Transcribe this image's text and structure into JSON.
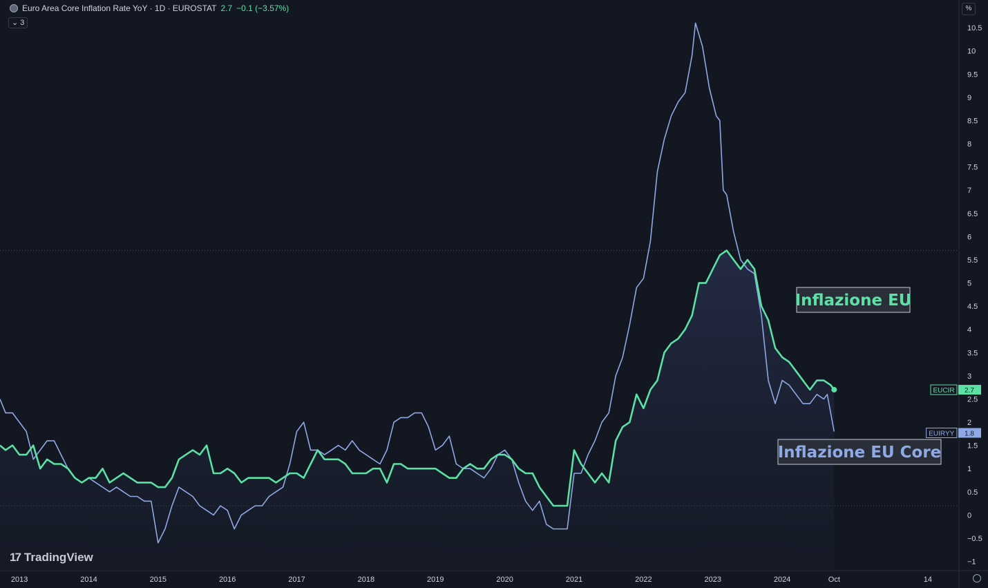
{
  "header": {
    "title": "Euro Area Core Inflation Rate YoY · 1D · EUROSTAT",
    "value": "2.7",
    "change": "−0.1 (−3.57%)",
    "indicators_toggle": "3",
    "scale_button": "%"
  },
  "branding": {
    "logo_text": "TradingView",
    "logo_mark": "17"
  },
  "colors": {
    "background": "#131722",
    "series_eu": "#5ce1a5",
    "series_core": "#8fa8e6",
    "grid_dotted": "#4a4e59"
  },
  "chart_data": {
    "type": "line",
    "title": "Euro Area Core Inflation Rate YoY",
    "ylim": [
      -1.2,
      10.8
    ],
    "ylabel": "%",
    "yticks": [
      10.5,
      10,
      9.5,
      9,
      8.5,
      8,
      7.5,
      7,
      6.5,
      6,
      5.5,
      5,
      4.5,
      4,
      3.5,
      3,
      2.5,
      2,
      1.5,
      1,
      0.5,
      0,
      -0.5,
      -1
    ],
    "xticks": [
      "2013",
      "2014",
      "2015",
      "2016",
      "2017",
      "2018",
      "2019",
      "2020",
      "2021",
      "2022",
      "2023",
      "2024",
      "Oct",
      "14"
    ],
    "xtick_years": [
      2013,
      2014,
      2015,
      2016,
      2017,
      2018,
      2019,
      2020,
      2021,
      2022,
      2023,
      2024,
      2024.75,
      2026.1
    ],
    "xlim": [
      2012.72,
      2026.55
    ],
    "price_lines": [
      5.7,
      0.2
    ],
    "series": [
      {
        "name": "Inflazione EU",
        "tag": "EUCIR",
        "last": "2.7",
        "color": "#5ce1a5",
        "points": [
          [
            2012.72,
            1.5
          ],
          [
            2012.8,
            1.4
          ],
          [
            2012.9,
            1.5
          ],
          [
            2013.0,
            1.3
          ],
          [
            2013.1,
            1.3
          ],
          [
            2013.2,
            1.5
          ],
          [
            2013.3,
            1.0
          ],
          [
            2013.4,
            1.2
          ],
          [
            2013.5,
            1.1
          ],
          [
            2013.6,
            1.1
          ],
          [
            2013.7,
            1.0
          ],
          [
            2013.8,
            0.8
          ],
          [
            2013.9,
            0.7
          ],
          [
            2014.0,
            0.8
          ],
          [
            2014.1,
            0.8
          ],
          [
            2014.2,
            1.0
          ],
          [
            2014.3,
            0.7
          ],
          [
            2014.4,
            0.8
          ],
          [
            2014.5,
            0.9
          ],
          [
            2014.6,
            0.8
          ],
          [
            2014.7,
            0.7
          ],
          [
            2014.8,
            0.7
          ],
          [
            2014.9,
            0.7
          ],
          [
            2015.0,
            0.6
          ],
          [
            2015.1,
            0.6
          ],
          [
            2015.2,
            0.8
          ],
          [
            2015.3,
            1.2
          ],
          [
            2015.4,
            1.3
          ],
          [
            2015.5,
            1.4
          ],
          [
            2015.6,
            1.3
          ],
          [
            2015.7,
            1.5
          ],
          [
            2015.8,
            0.9
          ],
          [
            2015.9,
            0.9
          ],
          [
            2016.0,
            1.0
          ],
          [
            2016.1,
            0.9
          ],
          [
            2016.2,
            0.7
          ],
          [
            2016.3,
            0.8
          ],
          [
            2016.4,
            0.8
          ],
          [
            2016.5,
            0.8
          ],
          [
            2016.6,
            0.8
          ],
          [
            2016.7,
            0.7
          ],
          [
            2016.8,
            0.8
          ],
          [
            2016.9,
            0.9
          ],
          [
            2017.0,
            0.9
          ],
          [
            2017.1,
            0.8
          ],
          [
            2017.2,
            1.1
          ],
          [
            2017.3,
            1.4
          ],
          [
            2017.4,
            1.2
          ],
          [
            2017.5,
            1.2
          ],
          [
            2017.6,
            1.2
          ],
          [
            2017.7,
            1.1
          ],
          [
            2017.8,
            0.9
          ],
          [
            2017.9,
            0.9
          ],
          [
            2018.0,
            0.9
          ],
          [
            2018.1,
            1.0
          ],
          [
            2018.2,
            1.0
          ],
          [
            2018.3,
            0.7
          ],
          [
            2018.4,
            1.1
          ],
          [
            2018.5,
            1.1
          ],
          [
            2018.6,
            1.0
          ],
          [
            2018.7,
            1.0
          ],
          [
            2018.8,
            1.0
          ],
          [
            2018.9,
            1.0
          ],
          [
            2019.0,
            1.0
          ],
          [
            2019.1,
            0.9
          ],
          [
            2019.2,
            0.8
          ],
          [
            2019.3,
            0.8
          ],
          [
            2019.4,
            1.0
          ],
          [
            2019.5,
            1.1
          ],
          [
            2019.6,
            1.0
          ],
          [
            2019.7,
            1.0
          ],
          [
            2019.8,
            1.2
          ],
          [
            2019.9,
            1.3
          ],
          [
            2020.0,
            1.3
          ],
          [
            2020.1,
            1.2
          ],
          [
            2020.2,
            1.0
          ],
          [
            2020.3,
            0.9
          ],
          [
            2020.4,
            0.9
          ],
          [
            2020.5,
            0.6
          ],
          [
            2020.6,
            0.4
          ],
          [
            2020.7,
            0.2
          ],
          [
            2020.8,
            0.2
          ],
          [
            2020.9,
            0.2
          ],
          [
            2021.0,
            1.4
          ],
          [
            2021.1,
            1.1
          ],
          [
            2021.2,
            0.9
          ],
          [
            2021.3,
            0.7
          ],
          [
            2021.4,
            0.9
          ],
          [
            2021.5,
            0.7
          ],
          [
            2021.6,
            1.6
          ],
          [
            2021.7,
            1.9
          ],
          [
            2021.8,
            2.0
          ],
          [
            2021.9,
            2.6
          ],
          [
            2022.0,
            2.3
          ],
          [
            2022.1,
            2.7
          ],
          [
            2022.2,
            2.9
          ],
          [
            2022.3,
            3.5
          ],
          [
            2022.4,
            3.7
          ],
          [
            2022.5,
            3.8
          ],
          [
            2022.6,
            4.0
          ],
          [
            2022.7,
            4.3
          ],
          [
            2022.8,
            5.0
          ],
          [
            2022.9,
            5.0
          ],
          [
            2023.0,
            5.3
          ],
          [
            2023.1,
            5.6
          ],
          [
            2023.2,
            5.7
          ],
          [
            2023.3,
            5.5
          ],
          [
            2023.4,
            5.3
          ],
          [
            2023.5,
            5.5
          ],
          [
            2023.6,
            5.3
          ],
          [
            2023.7,
            4.5
          ],
          [
            2023.8,
            4.2
          ],
          [
            2023.9,
            3.6
          ],
          [
            2024.0,
            3.4
          ],
          [
            2024.1,
            3.3
          ],
          [
            2024.2,
            3.1
          ],
          [
            2024.3,
            2.9
          ],
          [
            2024.4,
            2.7
          ],
          [
            2024.5,
            2.9
          ],
          [
            2024.6,
            2.9
          ],
          [
            2024.7,
            2.8
          ],
          [
            2024.75,
            2.7
          ]
        ]
      },
      {
        "name": "Inflazione EU Core",
        "tag": "EUIRYY",
        "last": "1.8",
        "color": "#8fa8e6",
        "points": [
          [
            2012.72,
            2.5
          ],
          [
            2012.8,
            2.2
          ],
          [
            2012.9,
            2.2
          ],
          [
            2013.0,
            2.0
          ],
          [
            2013.1,
            1.8
          ],
          [
            2013.2,
            1.2
          ],
          [
            2013.3,
            1.4
          ],
          [
            2013.4,
            1.6
          ],
          [
            2013.5,
            1.6
          ],
          [
            2013.6,
            1.3
          ],
          [
            2013.7,
            1.0
          ],
          [
            2013.8,
            0.8
          ],
          [
            2013.9,
            0.7
          ],
          [
            2014.0,
            0.8
          ],
          [
            2014.1,
            0.7
          ],
          [
            2014.2,
            0.6
          ],
          [
            2014.3,
            0.5
          ],
          [
            2014.4,
            0.6
          ],
          [
            2014.5,
            0.5
          ],
          [
            2014.6,
            0.4
          ],
          [
            2014.7,
            0.4
          ],
          [
            2014.8,
            0.3
          ],
          [
            2014.9,
            0.3
          ],
          [
            2015.0,
            -0.6
          ],
          [
            2015.1,
            -0.3
          ],
          [
            2015.2,
            0.2
          ],
          [
            2015.3,
            0.6
          ],
          [
            2015.4,
            0.5
          ],
          [
            2015.5,
            0.4
          ],
          [
            2015.6,
            0.2
          ],
          [
            2015.7,
            0.1
          ],
          [
            2015.8,
            0.0
          ],
          [
            2015.9,
            0.2
          ],
          [
            2016.0,
            0.1
          ],
          [
            2016.1,
            -0.3
          ],
          [
            2016.2,
            0.0
          ],
          [
            2016.3,
            0.1
          ],
          [
            2016.4,
            0.2
          ],
          [
            2016.5,
            0.2
          ],
          [
            2016.6,
            0.4
          ],
          [
            2016.7,
            0.5
          ],
          [
            2016.8,
            0.6
          ],
          [
            2016.9,
            1.1
          ],
          [
            2017.0,
            1.8
          ],
          [
            2017.1,
            2.0
          ],
          [
            2017.2,
            1.4
          ],
          [
            2017.3,
            1.4
          ],
          [
            2017.4,
            1.3
          ],
          [
            2017.5,
            1.4
          ],
          [
            2017.6,
            1.5
          ],
          [
            2017.7,
            1.4
          ],
          [
            2017.8,
            1.6
          ],
          [
            2017.9,
            1.4
          ],
          [
            2018.0,
            1.3
          ],
          [
            2018.1,
            1.2
          ],
          [
            2018.2,
            1.1
          ],
          [
            2018.3,
            1.4
          ],
          [
            2018.4,
            2.0
          ],
          [
            2018.5,
            2.1
          ],
          [
            2018.6,
            2.1
          ],
          [
            2018.7,
            2.2
          ],
          [
            2018.8,
            2.2
          ],
          [
            2018.9,
            1.9
          ],
          [
            2019.0,
            1.4
          ],
          [
            2019.1,
            1.5
          ],
          [
            2019.2,
            1.7
          ],
          [
            2019.3,
            1.1
          ],
          [
            2019.4,
            1.0
          ],
          [
            2019.5,
            1.0
          ],
          [
            2019.6,
            0.9
          ],
          [
            2019.7,
            0.8
          ],
          [
            2019.8,
            1.0
          ],
          [
            2019.9,
            1.3
          ],
          [
            2020.0,
            1.4
          ],
          [
            2020.1,
            1.2
          ],
          [
            2020.2,
            0.7
          ],
          [
            2020.3,
            0.3
          ],
          [
            2020.4,
            0.1
          ],
          [
            2020.5,
            0.3
          ],
          [
            2020.6,
            -0.2
          ],
          [
            2020.7,
            -0.3
          ],
          [
            2020.8,
            -0.3
          ],
          [
            2020.9,
            -0.3
          ],
          [
            2021.0,
            0.9
          ],
          [
            2021.1,
            0.9
          ],
          [
            2021.2,
            1.3
          ],
          [
            2021.3,
            1.6
          ],
          [
            2021.4,
            2.0
          ],
          [
            2021.5,
            2.2
          ],
          [
            2021.6,
            3.0
          ],
          [
            2021.7,
            3.4
          ],
          [
            2021.8,
            4.1
          ],
          [
            2021.9,
            4.9
          ],
          [
            2022.0,
            5.1
          ],
          [
            2022.1,
            5.9
          ],
          [
            2022.2,
            7.4
          ],
          [
            2022.3,
            8.1
          ],
          [
            2022.4,
            8.6
          ],
          [
            2022.5,
            8.9
          ],
          [
            2022.6,
            9.1
          ],
          [
            2022.7,
            9.9
          ],
          [
            2022.75,
            10.6
          ],
          [
            2022.85,
            10.1
          ],
          [
            2022.95,
            9.2
          ],
          [
            2023.05,
            8.6
          ],
          [
            2023.1,
            8.5
          ],
          [
            2023.15,
            7.0
          ],
          [
            2023.2,
            6.9
          ],
          [
            2023.3,
            6.1
          ],
          [
            2023.4,
            5.5
          ],
          [
            2023.5,
            5.3
          ],
          [
            2023.6,
            5.2
          ],
          [
            2023.7,
            4.3
          ],
          [
            2023.8,
            2.9
          ],
          [
            2023.9,
            2.4
          ],
          [
            2024.0,
            2.9
          ],
          [
            2024.1,
            2.8
          ],
          [
            2024.2,
            2.6
          ],
          [
            2024.3,
            2.4
          ],
          [
            2024.4,
            2.4
          ],
          [
            2024.5,
            2.6
          ],
          [
            2024.6,
            2.5
          ],
          [
            2024.65,
            2.6
          ],
          [
            2024.75,
            1.8
          ]
        ]
      }
    ],
    "annotations": [
      {
        "text": "Inflazione EU",
        "color": "#5ce1a5"
      },
      {
        "text": "Inflazione EU Core",
        "color": "#8fa8e6"
      }
    ]
  }
}
